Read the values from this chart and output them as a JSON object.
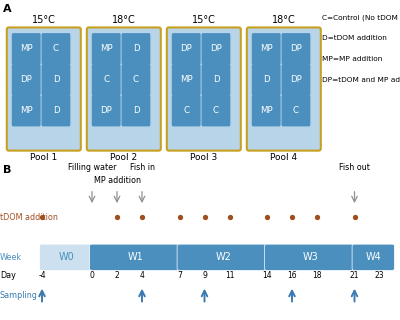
{
  "panel_a": {
    "label": "A",
    "pools": [
      {
        "name": "Pool 1",
        "temp": "15°C",
        "cells": [
          [
            "MP",
            "C"
          ],
          [
            "DP",
            "D"
          ],
          [
            "MP",
            "D"
          ]
        ]
      },
      {
        "name": "Pool 2",
        "temp": "18°C",
        "cells": [
          [
            "MP",
            "D"
          ],
          [
            "C",
            "C"
          ],
          [
            "DP",
            "D"
          ]
        ]
      },
      {
        "name": "Pool 3",
        "temp": "15°C",
        "cells": [
          [
            "DP",
            "DP"
          ],
          [
            "MP",
            "D"
          ],
          [
            "C",
            "C"
          ]
        ]
      },
      {
        "name": "Pool 4",
        "temp": "18°C",
        "cells": [
          [
            "MP",
            "DP"
          ],
          [
            "D",
            "DP"
          ],
          [
            "MP",
            "C"
          ]
        ]
      }
    ],
    "legend": [
      "C=Control (No tDOM or MP)",
      "D=tDOM addition",
      "MP=MP addition",
      "DP=tDOM and MP addition"
    ],
    "cell_color": "#4a8fbe",
    "pool_bg": "#b8d4e8",
    "pool_border": "#c8a020",
    "cell_text_color": "white"
  },
  "panel_b": {
    "label": "B",
    "weeks": [
      "W0",
      "W1",
      "W2",
      "W3",
      "W4"
    ],
    "week_starts_days": [
      -4,
      0,
      7,
      14,
      21
    ],
    "week_ends_days": [
      0,
      7,
      14,
      21,
      24
    ],
    "week_color_w0": "#cce0f0",
    "week_color": "#4a8fbe",
    "week_text_color": "white",
    "week_text_color_w0": "#4a8fbe",
    "day_ticks": [
      -4,
      0,
      2,
      4,
      7,
      9,
      11,
      14,
      16,
      18,
      21,
      23
    ],
    "tdom_dots_x": [
      -4,
      2,
      4,
      7,
      9,
      11,
      14,
      16,
      18,
      21
    ],
    "tdom_dot_color": "#a05020",
    "sampling_arrows_x": [
      -4,
      4,
      9,
      16,
      21
    ],
    "top_annotations": [
      {
        "label": "Filling water",
        "arrow_day": 0,
        "text_day": 0,
        "text_row": 0
      },
      {
        "label": "MP addition",
        "arrow_day": 2,
        "text_day": 2,
        "text_row": 1
      },
      {
        "label": "Fish in",
        "arrow_day": 4,
        "text_day": 4,
        "text_row": 0
      },
      {
        "label": "Fish out",
        "arrow_day": 21,
        "text_day": 21,
        "text_row": 0
      }
    ],
    "arrow_color": "#909090",
    "sampling_color": "#3a7ab0",
    "day_min": -4,
    "day_max": 24
  }
}
